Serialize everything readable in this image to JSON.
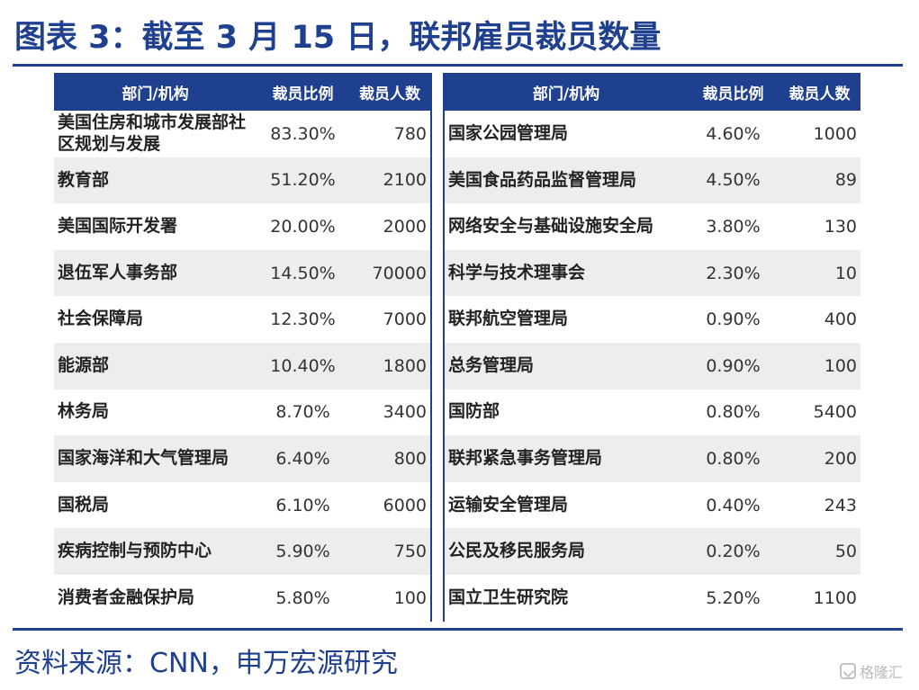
{
  "title": "图表 3：截至 3 月 15 日，联邦雇员裁员数量",
  "headers": {
    "left": [
      "部门/机构",
      "裁员比例",
      "裁员人数"
    ],
    "right": [
      "部门/机构",
      "裁员比例",
      "裁员人数"
    ]
  },
  "left_rows": [
    {
      "name": "美国住房和城市发展部社区规划与发展",
      "ratio": "83.30%",
      "count": "780"
    },
    {
      "name": "教育部",
      "ratio": "51.20%",
      "count": "2100"
    },
    {
      "name": "美国国际开发署",
      "ratio": "20.00%",
      "count": "2000"
    },
    {
      "name": "退伍军人事务部",
      "ratio": "14.50%",
      "count": "70000"
    },
    {
      "name": "社会保障局",
      "ratio": "12.30%",
      "count": "7000"
    },
    {
      "name": "能源部",
      "ratio": "10.40%",
      "count": "1800"
    },
    {
      "name": "林务局",
      "ratio": "8.70%",
      "count": "3400"
    },
    {
      "name": "国家海洋和大气管理局",
      "ratio": "6.40%",
      "count": "800"
    },
    {
      "name": "国税局",
      "ratio": "6.10%",
      "count": "6000"
    },
    {
      "name": "疾病控制与预防中心",
      "ratio": "5.90%",
      "count": "750"
    },
    {
      "name": "消费者金融保护局",
      "ratio": "5.80%",
      "count": "100"
    }
  ],
  "right_rows": [
    {
      "name": "国家公园管理局",
      "ratio": "4.60%",
      "count": "1000"
    },
    {
      "name": "美国食品药品监督管理局",
      "ratio": "4.50%",
      "count": "89"
    },
    {
      "name": "网络安全与基础设施安全局",
      "ratio": "3.80%",
      "count": "130"
    },
    {
      "name": "科学与技术理事会",
      "ratio": "2.30%",
      "count": "10"
    },
    {
      "name": "联邦航空管理局",
      "ratio": "0.90%",
      "count": "400"
    },
    {
      "name": "总务管理局",
      "ratio": "0.90%",
      "count": "100"
    },
    {
      "name": "国防部",
      "ratio": "0.80%",
      "count": "5400"
    },
    {
      "name": "联邦紧急事务管理局",
      "ratio": "0.80%",
      "count": "200"
    },
    {
      "name": "运输安全管理局",
      "ratio": "0.40%",
      "count": "243"
    },
    {
      "name": "公民及移民服务局",
      "ratio": "0.20%",
      "count": "50"
    },
    {
      "name": "国立卫生研究院",
      "ratio": "5.20%",
      "count": "1100"
    }
  ],
  "source": "资料来源：CNN，申万宏源研究",
  "watermark": "格隆汇",
  "colors": {
    "accent": "#1f3f8f",
    "row_alt": "#ededed"
  }
}
